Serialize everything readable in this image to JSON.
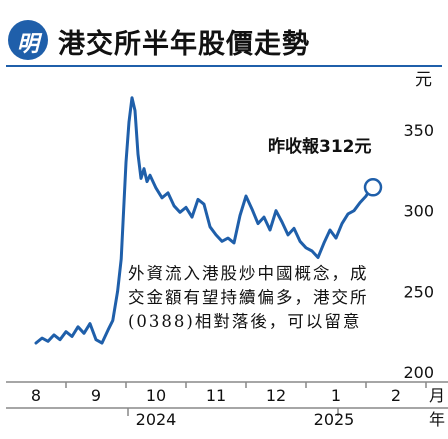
{
  "header": {
    "logo_text": "明",
    "title": "港交所半年股價走勢"
  },
  "annotation": {
    "close_label": "昨收報312元",
    "note": "外資流入港股炒中國概念，成交金額有望持續偏多，港交所(0388)相對落後，可以留意"
  },
  "chart_data": {
    "type": "line",
    "title": "港交所半年股價走勢",
    "ylabel": "元",
    "xlabel": "月",
    "x_unit_label": "月",
    "y_unit_label": "元",
    "ylim": [
      200,
      375
    ],
    "yticks": [
      200,
      250,
      300,
      350
    ],
    "months": [
      "8",
      "9",
      "10",
      "11",
      "12",
      "1",
      "2"
    ],
    "year_labels": [
      {
        "label": "2024",
        "month_index": 2
      },
      {
        "label": "2025",
        "month_index": 5
      }
    ],
    "year_suffix": "年",
    "line_color": "#1f5faa",
    "series": [
      {
        "x": [
          0.0,
          0.1,
          0.2,
          0.3,
          0.4,
          0.5,
          0.6,
          0.7,
          0.8,
          0.9,
          1.0,
          1.1,
          1.2,
          1.28,
          1.36,
          1.42,
          1.46,
          1.5,
          1.55,
          1.6,
          1.65,
          1.7,
          1.75,
          1.8,
          1.85,
          1.9,
          2.0,
          2.1,
          2.2,
          2.3,
          2.4,
          2.5,
          2.6,
          2.7,
          2.8,
          2.9,
          3.0,
          3.1,
          3.2,
          3.3,
          3.4,
          3.5,
          3.6,
          3.7,
          3.8,
          3.9,
          4.0,
          4.1,
          4.2,
          4.3,
          4.4,
          4.5,
          4.6,
          4.7,
          4.8,
          4.9,
          5.0,
          5.1,
          5.2,
          5.3,
          5.4,
          5.5,
          5.55
        ],
        "values": [
          218,
          221,
          219,
          223,
          220,
          225,
          222,
          228,
          224,
          230,
          220,
          218,
          226,
          232,
          250,
          270,
          300,
          330,
          355,
          370,
          362,
          335,
          320,
          326,
          318,
          322,
          314,
          308,
          311,
          303,
          299,
          302,
          296,
          307,
          304,
          290,
          285,
          281,
          283,
          280,
          297,
          309,
          301,
          292,
          296,
          288,
          300,
          293,
          285,
          289,
          281,
          277,
          275,
          271,
          280,
          288,
          283,
          292,
          298,
          300,
          305,
          309,
          312
        ]
      }
    ],
    "last_close": 312
  }
}
